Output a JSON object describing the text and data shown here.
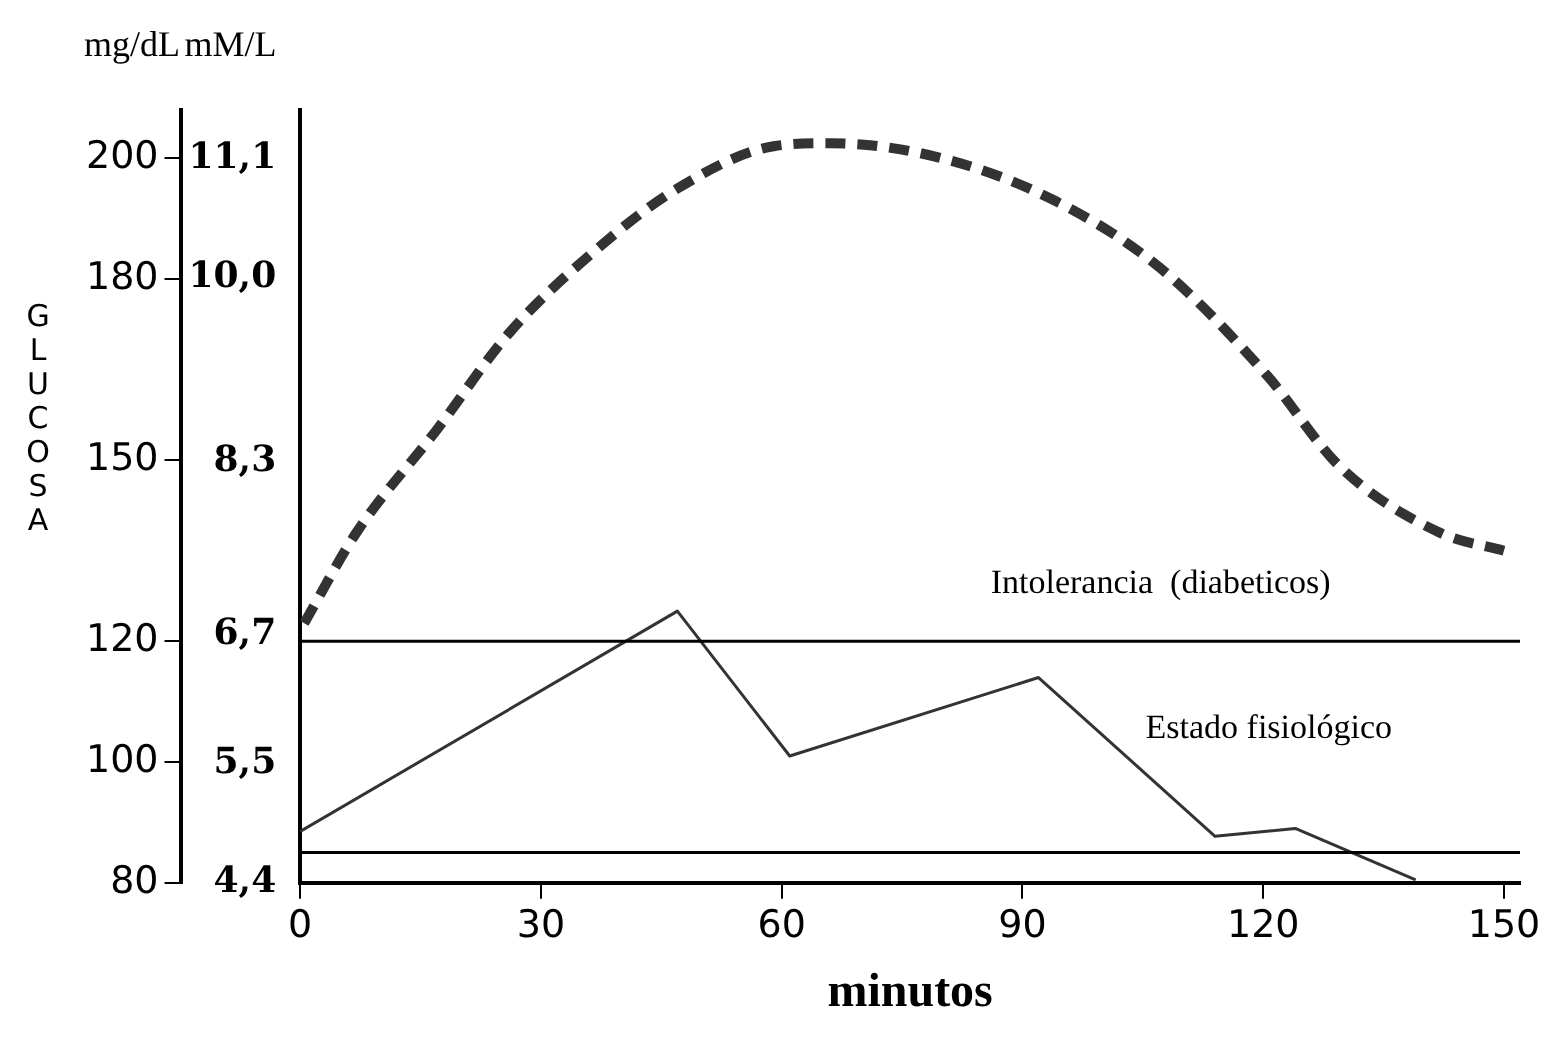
{
  "chart_data": {
    "type": "line",
    "xlabel": "minutos",
    "ylabel": "mg/dL",
    "y2label": "mM/L",
    "annotations": [
      "GLUCOSA",
      "Intolerancia  (diabeticos)",
      "Estado fisiológico"
    ],
    "series": [
      {
        "color": "#333333",
        "line_style": "dashed",
        "x": [
          0.5,
          7,
          17,
          26,
          37,
          47,
          59,
          66,
          80,
          94,
          107,
          120.5,
          129.5,
          142,
          150
        ],
        "values": [
          123,
          138,
          155,
          171,
          185,
          195,
          202,
          202.5,
          200,
          193,
          182,
          164,
          149,
          138,
          135
        ]
      },
      {
        "color": "#333333",
        "line_style": "solid",
        "x": [
          0,
          47,
          61,
          92,
          114,
          124,
          139
        ],
        "values": [
          88.5,
          125,
          101,
          114,
          87.7,
          89,
          80.5
        ]
      }
    ],
    "xlim": [
      0,
      152
    ],
    "xticks": [
      0,
      30,
      60,
      90,
      120,
      150
    ],
    "ylim": [
      80,
      208
    ],
    "yticks": [
      80,
      100,
      120,
      150,
      180,
      200
    ],
    "y2lim": [
      4.4,
      11.55
    ],
    "y2ticks": [
      {
        "value": 4.4,
        "label": "4,4"
      },
      {
        "value": 5.5,
        "label": "5,5"
      },
      {
        "value": 6.7,
        "label": "6,7"
      },
      {
        "value": 8.3,
        "label": "8,3"
      },
      {
        "value": 10,
        "label": "10,0"
      },
      {
        "value": 11.1,
        "label": "11,1"
      }
    ],
    "ref_lines": [
      {
        "axis": "y",
        "value": 120
      },
      {
        "axis": "y",
        "value": 85
      }
    ],
    "grid": false,
    "legend": false,
    "marker": "none"
  }
}
